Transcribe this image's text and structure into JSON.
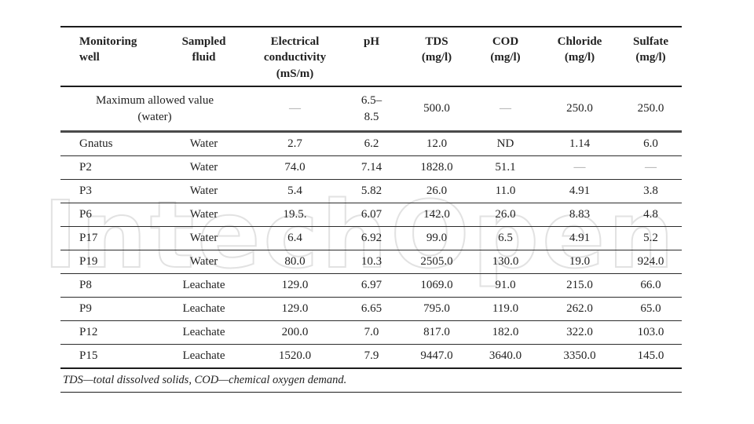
{
  "watermark": {
    "text": "IntechOpen",
    "color": "#e2e2e2"
  },
  "colors": {
    "rule_dark": "#1c1c1c",
    "rule_thick_gray": "#4a4a4a",
    "text": "#222222",
    "dash": "#9a9a9a",
    "background": "#ffffff"
  },
  "table": {
    "headers": [
      "Monitoring\nwell",
      "Sampled\nfluid",
      "Electrical\nconductivity\n(mS/m)",
      "pH",
      "TDS\n(mg/l)",
      "COD\n(mg/l)",
      "Chloride\n(mg/l)",
      "Sulfate\n(mg/l)"
    ],
    "max_row": {
      "label": "Maximum allowed value\n(water)",
      "values": [
        "—",
        "6.5–\n8.5",
        "500.0",
        "—",
        "250.0",
        "250.0"
      ]
    },
    "rows": [
      [
        "Gnatus",
        "Water",
        "2.7",
        "6.2",
        "12.0",
        "ND",
        "1.14",
        "6.0"
      ],
      [
        "P2",
        "Water",
        "74.0",
        "7.14",
        "1828.0",
        "51.1",
        "—",
        "—"
      ],
      [
        "P3",
        "Water",
        "5.4",
        "5.82",
        "26.0",
        "11.0",
        "4.91",
        "3.8"
      ],
      [
        "P6",
        "Water",
        "19.5.",
        "6.07",
        "142.0",
        "26.0",
        "8.83",
        "4.8"
      ],
      [
        "P17",
        "Water",
        "6.4",
        "6.92",
        "99.0",
        "6.5",
        "4.91",
        "5.2"
      ],
      [
        "P19",
        "Water",
        "80.0",
        "10.3",
        "2505.0",
        "130.0",
        "19.0",
        "924.0"
      ],
      [
        "P8",
        "Leachate",
        "129.0",
        "6.97",
        "1069.0",
        "91.0",
        "215.0",
        "66.0"
      ],
      [
        "P9",
        "Leachate",
        "129.0",
        "6.65",
        "795.0",
        "119.0",
        "262.0",
        "65.0"
      ],
      [
        "P12",
        "Leachate",
        "200.0",
        "7.0",
        "817.0",
        "182.0",
        "322.0",
        "103.0"
      ],
      [
        "P15",
        "Leachate",
        "1520.0",
        "7.9",
        "9447.0",
        "3640.0",
        "3350.0",
        "145.0"
      ]
    ],
    "footnote": "TDS—total dissolved solids, COD—chemical oxygen demand."
  }
}
